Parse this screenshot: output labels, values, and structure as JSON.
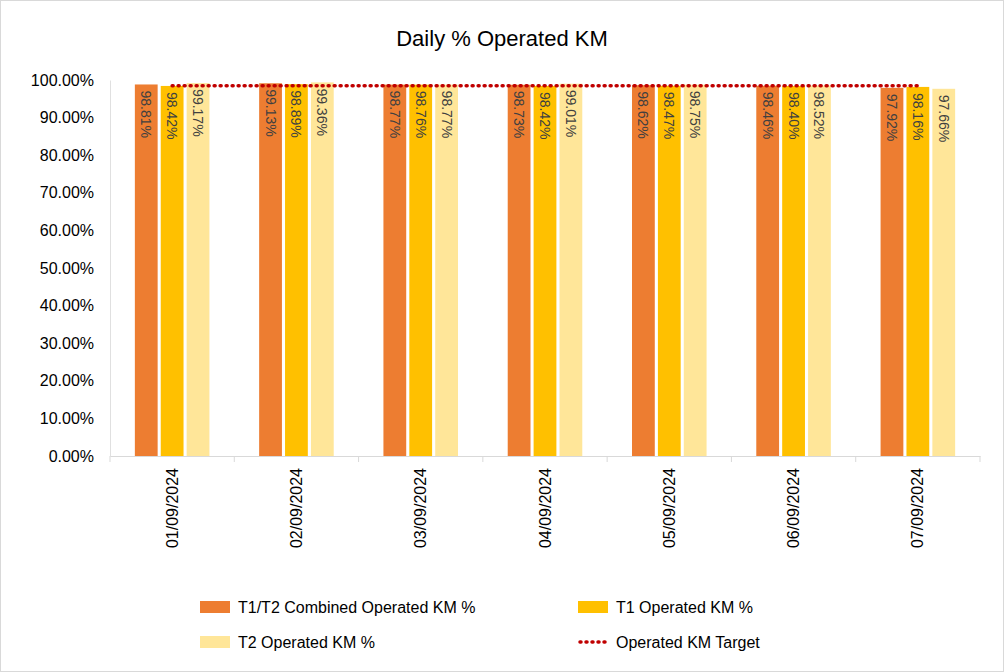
{
  "chart_data": {
    "type": "bar",
    "title": "Daily % Operated KM",
    "categories": [
      "01/09/2024",
      "02/09/2024",
      "03/09/2024",
      "04/09/2024",
      "05/09/2024",
      "06/09/2024",
      "07/09/2024"
    ],
    "series": [
      {
        "name": "T1/T2 Combined Operated KM %",
        "type": "bar",
        "color": "#ED7D31",
        "values": [
          98.81,
          99.13,
          98.77,
          98.73,
          98.62,
          98.46,
          97.92
        ],
        "value_labels": [
          "98.81%",
          "99.13%",
          "98.77%",
          "98.73%",
          "98.62%",
          "98.46%",
          "97.92%"
        ]
      },
      {
        "name": "T1 Operated KM %",
        "type": "bar",
        "color": "#FFC000",
        "values": [
          98.42,
          98.89,
          98.76,
          98.42,
          98.47,
          98.4,
          98.16
        ],
        "value_labels": [
          "98.42%",
          "98.89%",
          "98.76%",
          "98.42%",
          "98.47%",
          "98.40%",
          "98.16%"
        ]
      },
      {
        "name": "T2 Operated KM %",
        "type": "bar",
        "color": "#FFE699",
        "values": [
          99.17,
          99.36,
          98.77,
          99.01,
          98.75,
          98.52,
          97.66
        ],
        "value_labels": [
          "99.17%",
          "99.36%",
          "98.77%",
          "99.01%",
          "98.75%",
          "98.52%",
          "97.66%"
        ]
      },
      {
        "name": "Operated KM Target",
        "type": "line",
        "color": "#C00000",
        "line_style": "dotted",
        "values": [
          98.5,
          98.5,
          98.5,
          98.5,
          98.5,
          98.5,
          98.5
        ]
      }
    ],
    "ylim": [
      0,
      100
    ],
    "yticks": [
      {
        "value": 0,
        "label": "0.00%"
      },
      {
        "value": 10,
        "label": "10.00%"
      },
      {
        "value": 20,
        "label": "20.00%"
      },
      {
        "value": 30,
        "label": "30.00%"
      },
      {
        "value": 40,
        "label": "40.00%"
      },
      {
        "value": 50,
        "label": "50.00%"
      },
      {
        "value": 60,
        "label": "60.00%"
      },
      {
        "value": 70,
        "label": "70.00%"
      },
      {
        "value": 80,
        "label": "80.00%"
      },
      {
        "value": 90,
        "label": "90.00%"
      },
      {
        "value": 100,
        "label": "100.00%"
      }
    ],
    "grid": false,
    "data_labels": true,
    "legend": "bottom"
  }
}
